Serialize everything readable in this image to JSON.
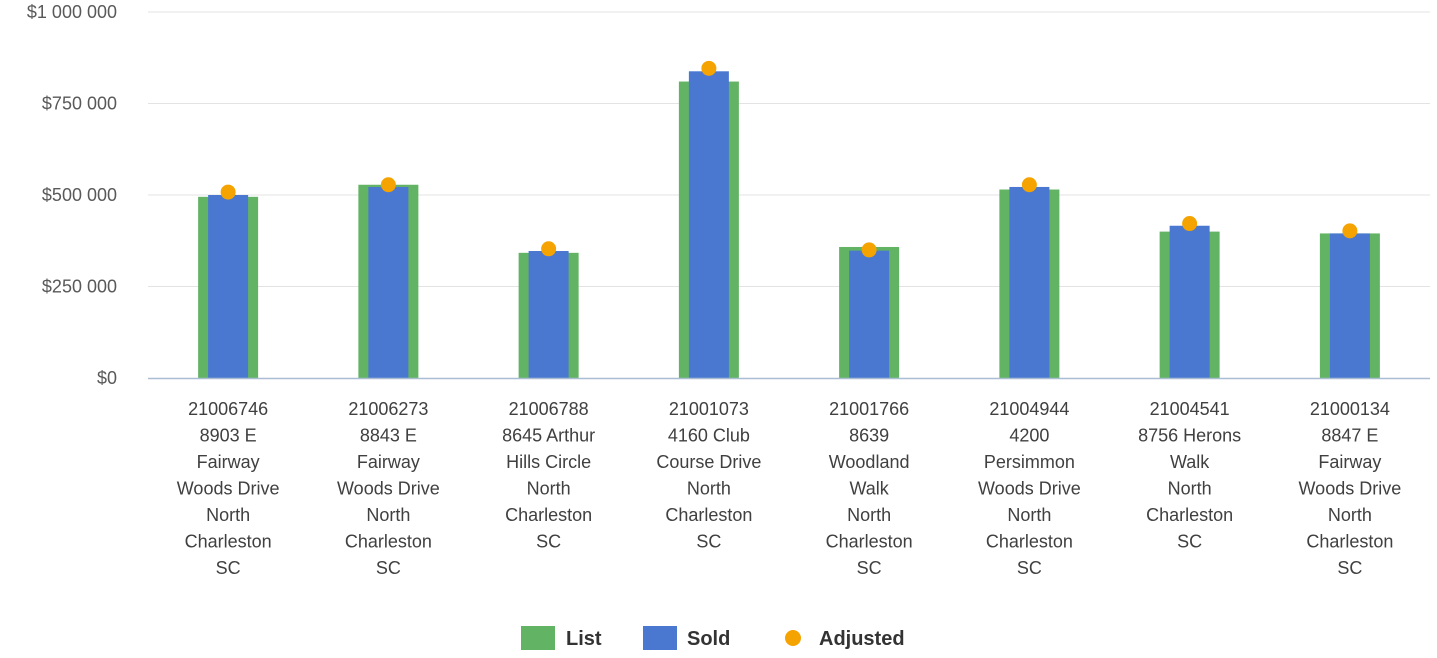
{
  "chart_data": {
    "type": "bar",
    "title": "",
    "xlabel": "",
    "ylabel": "",
    "ylim": [
      0,
      1000000
    ],
    "y_ticks": [
      0,
      250000,
      500000,
      750000,
      1000000
    ],
    "y_tick_labels": [
      "$0",
      "$250 000",
      "$500 000",
      "$750 000",
      "$1 000 000"
    ],
    "grid": true,
    "legend_position": "bottom",
    "categories": [
      [
        "21006746",
        "8903 E",
        "Fairway",
        "Woods Drive",
        "North",
        "Charleston",
        "SC"
      ],
      [
        "21006273",
        "8843 E",
        "Fairway",
        "Woods Drive",
        "North",
        "Charleston",
        "SC"
      ],
      [
        "21006788",
        "8645 Arthur",
        "Hills Circle",
        "North",
        "Charleston",
        "SC"
      ],
      [
        "21001073",
        "4160 Club",
        "Course Drive",
        "North",
        "Charleston",
        "SC"
      ],
      [
        "21001766",
        "8639",
        "Woodland",
        "Walk",
        "North",
        "Charleston",
        "SC"
      ],
      [
        "21004944",
        "4200",
        "Persimmon",
        "Woods Drive",
        "North",
        "Charleston",
        "SC"
      ],
      [
        "21004541",
        "8756 Herons",
        "Walk",
        "North",
        "Charleston",
        "SC"
      ],
      [
        "21000134",
        "8847 E",
        "Fairway",
        "Woods Drive",
        "North",
        "Charleston",
        "SC"
      ]
    ],
    "series": [
      {
        "name": "List",
        "kind": "bar",
        "color": "#63b365",
        "values": [
          495000,
          528000,
          342000,
          810000,
          358000,
          515000,
          400000,
          395000
        ]
      },
      {
        "name": "Sold",
        "kind": "bar",
        "color": "#4a78d0",
        "values": [
          500000,
          522000,
          347000,
          838000,
          348000,
          522000,
          416000,
          395000
        ]
      },
      {
        "name": "Adjusted",
        "kind": "dot",
        "color": "#f5a300",
        "values": [
          508000,
          528000,
          353000,
          846000,
          350000,
          528000,
          422000,
          402000
        ]
      }
    ]
  }
}
